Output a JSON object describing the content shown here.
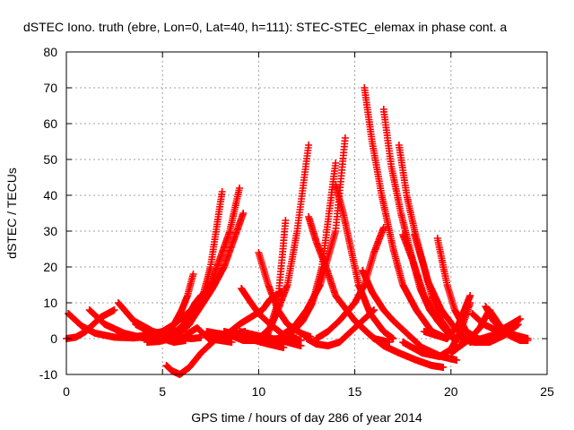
{
  "chart_data": {
    "type": "scatter",
    "title": "dSTEC Iono. truth (ebre, Lon=0, Lat=40, h=111): STEC-STEC_elemax in phase cont. a",
    "xlabel": "GPS time / hours of day 286 of year 2014",
    "ylabel": "dSTEC  / TECUs",
    "xlim": [
      0,
      25
    ],
    "ylim": [
      -10,
      80
    ],
    "xticks": [
      "0",
      "5",
      "10",
      "15",
      "20",
      "25"
    ],
    "yticks": [
      "-10",
      "0",
      "10",
      "20",
      "30",
      "40",
      "50",
      "60",
      "70",
      "80"
    ],
    "grid": true,
    "marker": "plus",
    "color": "#ff0000",
    "series": [
      {
        "x": [
          0.0,
          0.5,
          1.0,
          1.8,
          2.5
        ],
        "y": [
          0.0,
          0.4,
          2.0,
          6.0,
          8.0
        ]
      },
      {
        "x": [
          0.1,
          0.8,
          1.5,
          2.5,
          3.5,
          4.3
        ],
        "y": [
          7.0,
          3.5,
          1.5,
          0.4,
          0.2,
          0.6
        ]
      },
      {
        "x": [
          1.2,
          2.0,
          3.0,
          4.0,
          5.0,
          5.5
        ],
        "y": [
          8.0,
          4.0,
          1.5,
          0.2,
          0.2,
          0.5
        ]
      },
      {
        "x": [
          2.7,
          3.5,
          4.5,
          5.5,
          6.5,
          7.0
        ],
        "y": [
          10.0,
          5.0,
          2.0,
          0.5,
          0.0,
          0.3
        ]
      },
      {
        "x": [
          3.6,
          4.3,
          5.0,
          5.6,
          6.2
        ],
        "y": [
          4.0,
          2.0,
          0.0,
          -1.0,
          -0.5
        ]
      },
      {
        "x": [
          3.5,
          4.2,
          5.0,
          5.6,
          6.5,
          7.5,
          8.5,
          9.0
        ],
        "y": [
          0.5,
          1.0,
          2.0,
          4.0,
          8.0,
          15.0,
          30.0,
          42.0
        ]
      },
      {
        "x": [
          4.2,
          4.8,
          5.4,
          5.9,
          6.4,
          7.0,
          7.5,
          8.1
        ],
        "y": [
          -1.0,
          -0.8,
          0.0,
          1.5,
          4.0,
          10.0,
          20.0,
          41.0
        ]
      },
      {
        "x": [
          5.0,
          5.5,
          6.0,
          6.5,
          7.0,
          7.6,
          8.2,
          9.2
        ],
        "y": [
          0.0,
          1.0,
          2.5,
          5.0,
          9.0,
          14.0,
          20.0,
          35.0
        ]
      },
      {
        "x": [
          5.0,
          5.4,
          5.7,
          6.0,
          6.3,
          6.6
        ],
        "y": [
          0.0,
          2.0,
          5.0,
          8.0,
          12.0,
          18.0
        ]
      },
      {
        "x": [
          5.7,
          6.1,
          6.4,
          6.7,
          7.0
        ],
        "y": [
          2.0,
          4.0,
          7.0,
          10.0,
          12.0
        ]
      },
      {
        "x": [
          5.2,
          5.5,
          5.9,
          6.4,
          7.0,
          7.8,
          8.5,
          9.3
        ],
        "y": [
          -7.5,
          -9.0,
          -10.0,
          -8.0,
          -4.0,
          0.0,
          1.0,
          2.0
        ]
      },
      {
        "x": [
          6.2,
          6.8,
          7.4,
          8.0,
          8.6
        ],
        "y": [
          1.0,
          3.0,
          0.0,
          -0.5,
          -1.0
        ]
      },
      {
        "x": [
          7.3,
          7.8,
          8.5,
          9.2,
          10.0,
          11.0,
          11.8
        ],
        "y": [
          2.0,
          1.5,
          1.0,
          -0.5,
          -0.5,
          0.0,
          1.0
        ]
      },
      {
        "x": [
          8.2,
          9.0,
          9.8,
          10.5,
          11.3
        ],
        "y": [
          2.0,
          1.0,
          -0.5,
          -1.5,
          -2.5
        ]
      },
      {
        "x": [
          9.1,
          9.6,
          10.0,
          10.6,
          11.3,
          12.2
        ],
        "y": [
          14.0,
          10.0,
          7.0,
          4.0,
          1.0,
          -0.5
        ]
      },
      {
        "x": [
          9.0,
          9.8,
          10.7,
          11.5,
          12.2
        ],
        "y": [
          2.0,
          1.0,
          0.0,
          -1.0,
          -2.0
        ]
      },
      {
        "x": [
          8.3,
          9.0,
          9.6,
          10.2,
          10.6,
          11.2
        ],
        "y": [
          1.0,
          4.0,
          6.0,
          8.0,
          11.0,
          13.0
        ]
      },
      {
        "x": [
          10.0,
          10.5,
          11.0,
          11.5,
          12.2,
          12.7
        ],
        "y": [
          24.0,
          15.0,
          8.0,
          4.0,
          1.5,
          0.5
        ]
      },
      {
        "x": [
          10.0,
          10.6,
          11.0,
          11.5,
          12.0,
          12.6
        ],
        "y": [
          0.0,
          3.0,
          8.0,
          15.0,
          30.0,
          54.0
        ]
      },
      {
        "x": [
          10.1,
          10.5,
          11.0,
          11.4
        ],
        "y": [
          -1.0,
          1.5,
          10.0,
          33.0
        ]
      },
      {
        "x": [
          11.2,
          11.8,
          12.5,
          13.2,
          14.0,
          14.5
        ],
        "y": [
          1.0,
          3.0,
          8.0,
          15.0,
          30.0,
          56.0
        ]
      },
      {
        "x": [
          11.8,
          12.3,
          12.8,
          13.3,
          14.0
        ],
        "y": [
          2.0,
          5.0,
          10.0,
          20.0,
          49.0
        ]
      },
      {
        "x": [
          12.6,
          13.0,
          13.5,
          14.0,
          15.0,
          16.0,
          16.8
        ],
        "y": [
          34.0,
          27.0,
          20.0,
          12.0,
          5.0,
          0.0,
          -1.0
        ]
      },
      {
        "x": [
          13.0,
          13.6,
          14.2,
          15.0,
          15.5,
          16.0,
          16.5
        ],
        "y": [
          0.0,
          2.0,
          5.0,
          10.0,
          15.0,
          24.0,
          31.0
        ]
      },
      {
        "x": [
          14.0,
          14.4,
          14.8,
          15.2,
          15.8,
          16.5,
          17.0
        ],
        "y": [
          43.0,
          35.0,
          25.0,
          15.0,
          7.0,
          2.0,
          0.0
        ]
      },
      {
        "x": [
          12.5,
          13.0,
          13.6,
          14.2,
          14.8,
          15.4,
          16.0
        ],
        "y": [
          0.0,
          -1.5,
          -2.0,
          -1.0,
          2.0,
          5.0,
          8.0
        ]
      },
      {
        "x": [
          15.5,
          15.9,
          16.4,
          17.0,
          17.5,
          18.2,
          19.0,
          19.8
        ],
        "y": [
          70.0,
          55.0,
          40.0,
          25.0,
          15.0,
          8.0,
          2.0,
          0.0
        ]
      },
      {
        "x": [
          16.5,
          16.9,
          17.4,
          18.0,
          18.6,
          19.3,
          20.0
        ],
        "y": [
          64.0,
          48.0,
          35.0,
          22.0,
          12.0,
          5.0,
          1.0
        ]
      },
      {
        "x": [
          15.4,
          15.9,
          16.5,
          17.0,
          17.5,
          18.0,
          18.5,
          19.5,
          20.3
        ],
        "y": [
          19.0,
          13.0,
          8.0,
          5.0,
          2.5,
          0.0,
          -2.5,
          -5.0,
          -6.0
        ]
      },
      {
        "x": [
          17.3,
          17.7,
          18.2,
          18.8,
          19.5,
          20.2,
          20.8
        ],
        "y": [
          54.0,
          40.0,
          28.0,
          16.0,
          8.0,
          3.0,
          0.0
        ]
      },
      {
        "x": [
          17.5,
          18.0,
          18.4,
          18.9,
          19.6,
          20.3
        ],
        "y": [
          29.0,
          22.0,
          14.0,
          8.0,
          3.0,
          -1.0
        ]
      },
      {
        "x": [
          18.1,
          18.6,
          19.0,
          19.5,
          20.2
        ],
        "y": [
          29.0,
          20.0,
          12.0,
          5.0,
          0.0
        ]
      },
      {
        "x": [
          19.3,
          19.8,
          20.2,
          20.8,
          21.4,
          22.0
        ],
        "y": [
          28.0,
          15.0,
          8.0,
          2.0,
          0.0,
          -1.0
        ]
      },
      {
        "x": [
          15.0,
          15.8,
          16.5,
          17.3,
          18.2,
          19.0,
          19.6
        ],
        "y": [
          5.0,
          1.0,
          -2.0,
          -4.0,
          -6.0,
          -7.5,
          -8.0
        ]
      },
      {
        "x": [
          17.5,
          18.5,
          19.4,
          20.0,
          20.5,
          21.0
        ],
        "y": [
          -1.0,
          -4.0,
          -5.0,
          -3.0,
          2.0,
          10.0
        ]
      },
      {
        "x": [
          18.6,
          19.2,
          19.8,
          20.4,
          21.0
        ],
        "y": [
          2.0,
          1.0,
          0.0,
          4.0,
          12.0
        ]
      },
      {
        "x": [
          20.0,
          20.5,
          21.0,
          21.5,
          22.0
        ],
        "y": [
          -4.0,
          -2.0,
          0.0,
          3.0,
          8.0
        ]
      },
      {
        "x": [
          20.5,
          21.2,
          22.0,
          22.8,
          23.5
        ],
        "y": [
          0.0,
          -1.0,
          -1.0,
          1.0,
          4.0
        ]
      },
      {
        "x": [
          21.0,
          21.6,
          22.2,
          22.8,
          23.6
        ],
        "y": [
          -1.0,
          0.0,
          1.0,
          3.0,
          5.5
        ]
      },
      {
        "x": [
          21.8,
          22.2,
          22.8,
          23.3,
          24.0
        ],
        "y": [
          9.0,
          5.0,
          2.0,
          1.0,
          0.0
        ]
      },
      {
        "x": [
          22.0,
          22.5,
          23.0,
          23.6,
          24.0
        ],
        "y": [
          8.0,
          4.0,
          1.0,
          -0.5,
          -0.5
        ]
      },
      {
        "x": [
          21.1,
          21.7,
          22.3,
          22.9
        ],
        "y": [
          7.0,
          4.0,
          2.5,
          3.0
        ]
      }
    ]
  }
}
